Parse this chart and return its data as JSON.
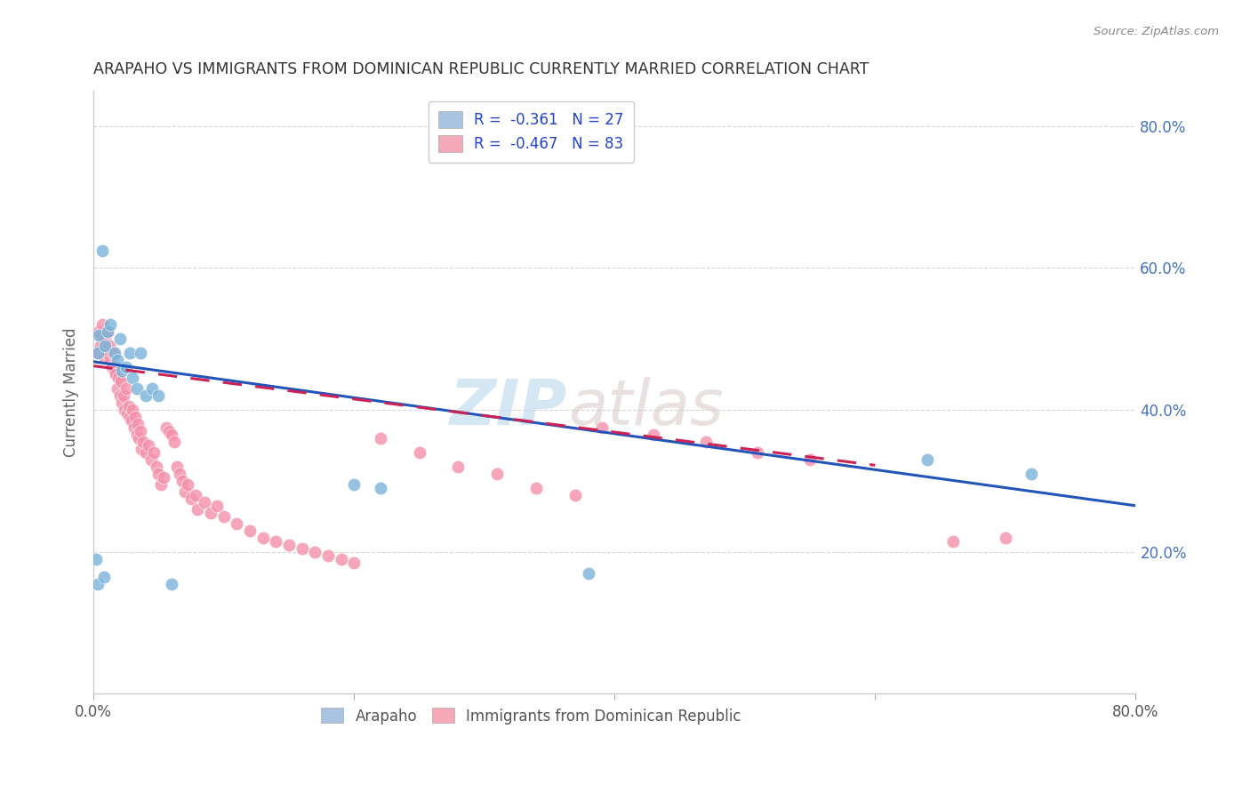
{
  "title": "ARAPAHO VS IMMIGRANTS FROM DOMINICAN REPUBLIC CURRENTLY MARRIED CORRELATION CHART",
  "source": "Source: ZipAtlas.com",
  "ylabel": "Currently Married",
  "x_min": 0.0,
  "x_max": 0.8,
  "y_min": 0.0,
  "y_max": 0.85,
  "y_ticks": [
    0.2,
    0.4,
    0.6,
    0.8
  ],
  "y_tick_labels": [
    "20.0%",
    "40.0%",
    "60.0%",
    "80.0%"
  ],
  "watermark_zip": "ZIP",
  "watermark_atlas": "atlas",
  "legend_entries": [
    {
      "label": "R =  -0.361   N = 27",
      "facecolor": "#a8c4e0"
    },
    {
      "label": "R =  -0.467   N = 83",
      "facecolor": "#f4a8b8"
    }
  ],
  "arapaho_color": "#7ab3d9",
  "arapaho_trend_color": "#2255bb",
  "dominican_color": "#f490aa",
  "dominican_trend_color": "#cc2255",
  "background_color": "#ffffff",
  "grid_color": "#cccccc",
  "title_color": "#333333",
  "right_axis_color": "#4472c4",
  "arapaho_x": [
    0.002,
    0.003,
    0.004,
    0.007,
    0.009,
    0.011,
    0.013,
    0.016,
    0.018,
    0.02,
    0.022,
    0.025,
    0.028,
    0.03,
    0.033,
    0.036,
    0.04,
    0.045,
    0.05,
    0.06,
    0.003,
    0.008,
    0.2,
    0.22,
    0.38,
    0.64,
    0.72
  ],
  "arapaho_y": [
    0.19,
    0.48,
    0.505,
    0.625,
    0.49,
    0.51,
    0.52,
    0.48,
    0.47,
    0.5,
    0.455,
    0.46,
    0.48,
    0.445,
    0.43,
    0.48,
    0.42,
    0.43,
    0.42,
    0.155,
    0.155,
    0.165,
    0.295,
    0.29,
    0.17,
    0.33,
    0.31
  ],
  "dominican_x": [
    0.003,
    0.004,
    0.005,
    0.006,
    0.007,
    0.008,
    0.009,
    0.01,
    0.011,
    0.012,
    0.013,
    0.014,
    0.015,
    0.016,
    0.017,
    0.018,
    0.019,
    0.02,
    0.021,
    0.022,
    0.023,
    0.024,
    0.025,
    0.026,
    0.027,
    0.028,
    0.029,
    0.03,
    0.031,
    0.032,
    0.033,
    0.034,
    0.035,
    0.036,
    0.037,
    0.038,
    0.04,
    0.042,
    0.044,
    0.046,
    0.048,
    0.05,
    0.052,
    0.054,
    0.056,
    0.058,
    0.06,
    0.062,
    0.064,
    0.066,
    0.068,
    0.07,
    0.072,
    0.075,
    0.078,
    0.08,
    0.085,
    0.09,
    0.095,
    0.1,
    0.11,
    0.12,
    0.13,
    0.14,
    0.15,
    0.16,
    0.17,
    0.18,
    0.19,
    0.2,
    0.22,
    0.25,
    0.28,
    0.31,
    0.34,
    0.37,
    0.39,
    0.43,
    0.47,
    0.51,
    0.55,
    0.66,
    0.7
  ],
  "dominican_y": [
    0.48,
    0.51,
    0.49,
    0.505,
    0.52,
    0.475,
    0.5,
    0.48,
    0.51,
    0.49,
    0.47,
    0.46,
    0.48,
    0.455,
    0.45,
    0.43,
    0.445,
    0.42,
    0.44,
    0.41,
    0.42,
    0.4,
    0.43,
    0.395,
    0.405,
    0.39,
    0.385,
    0.4,
    0.375,
    0.39,
    0.365,
    0.38,
    0.36,
    0.37,
    0.345,
    0.355,
    0.34,
    0.35,
    0.33,
    0.34,
    0.32,
    0.31,
    0.295,
    0.305,
    0.375,
    0.37,
    0.365,
    0.355,
    0.32,
    0.31,
    0.3,
    0.285,
    0.295,
    0.275,
    0.28,
    0.26,
    0.27,
    0.255,
    0.265,
    0.25,
    0.24,
    0.23,
    0.22,
    0.215,
    0.21,
    0.205,
    0.2,
    0.195,
    0.19,
    0.185,
    0.36,
    0.34,
    0.32,
    0.31,
    0.29,
    0.28,
    0.375,
    0.365,
    0.355,
    0.34,
    0.33,
    0.215,
    0.22
  ],
  "arapaho_trend_x": [
    0.0,
    0.8
  ],
  "arapaho_trend_y": [
    0.468,
    0.265
  ],
  "dominican_trend_x": [
    0.0,
    0.6
  ],
  "dominican_trend_y": [
    0.462,
    0.322
  ]
}
